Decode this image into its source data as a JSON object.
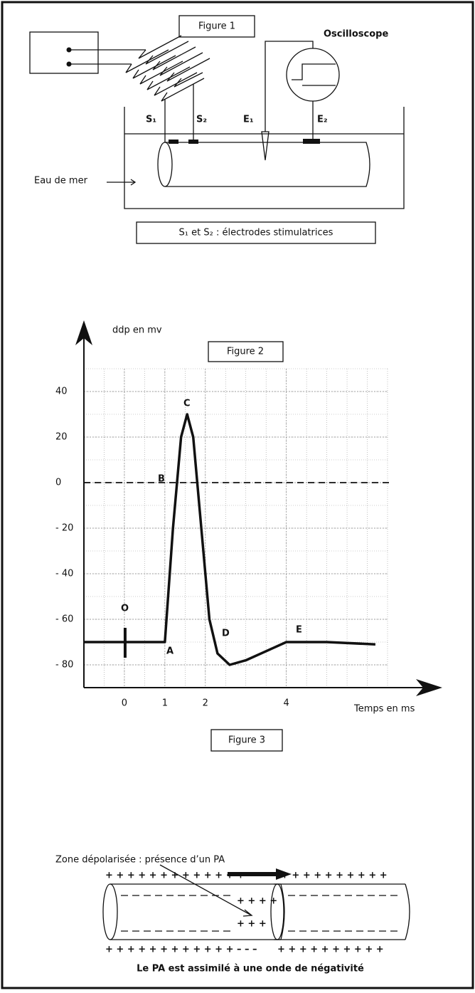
{
  "figure1": {
    "title": "Figure 1",
    "oscilloscope": "Oscilloscope",
    "s1": "S₁",
    "s2": "S₂",
    "e1": "E₁",
    "e2": "E₂",
    "medium": "Eau de mer",
    "caption": "S₁ et S₂ : électrodes stimulatrices"
  },
  "chart_data": {
    "type": "line",
    "title": "Figure 2",
    "y_label": "ddp en mv",
    "x_label": "Temps en ms",
    "xlim": [
      -1,
      6.5
    ],
    "ylim": [
      -90,
      50
    ],
    "xticks": [
      0,
      1,
      2,
      4
    ],
    "yticks": [
      40,
      20,
      0,
      {
        "value": -20,
        "label": "- 20"
      },
      {
        "value": -40,
        "label": "- 40"
      },
      {
        "value": -60,
        "label": "- 60"
      },
      {
        "value": -80,
        "label": "- 80"
      }
    ],
    "grid": true,
    "reference_line": 0,
    "annotations": [
      "O",
      "A",
      "B",
      "C",
      "D",
      "E"
    ],
    "series": [
      {
        "color": "#111111",
        "x": [
          -1,
          0,
          1,
          1.2,
          1.4,
          1.55,
          1.7,
          1.9,
          2.1,
          2.3,
          2.6,
          3,
          3.5,
          4,
          5,
          6.2
        ],
        "values": [
          -70,
          -70,
          -70,
          -20,
          20,
          30,
          20,
          -20,
          -60,
          -75,
          -80,
          -78,
          -74,
          -70,
          -70,
          -71
        ]
      }
    ]
  },
  "figure3": {
    "title": "Figure 3",
    "zone_label": "Zone dépolarisée : présence d’un PA",
    "top_left_charges": "+ + + + + + + + + + + + +",
    "top_right_charges": "+ + + + + + + + + +",
    "inner_top_charges": "+ + + +",
    "inner_bottom_charges": "+ + +",
    "bottom_left_charges": "+ + + + + + + + + + + +",
    "bottom_negative_charges": "– – –",
    "bottom_right_charges": "+ + + + + + + + + +",
    "caption": "Le PA est assimilé à une onde de négativité"
  }
}
